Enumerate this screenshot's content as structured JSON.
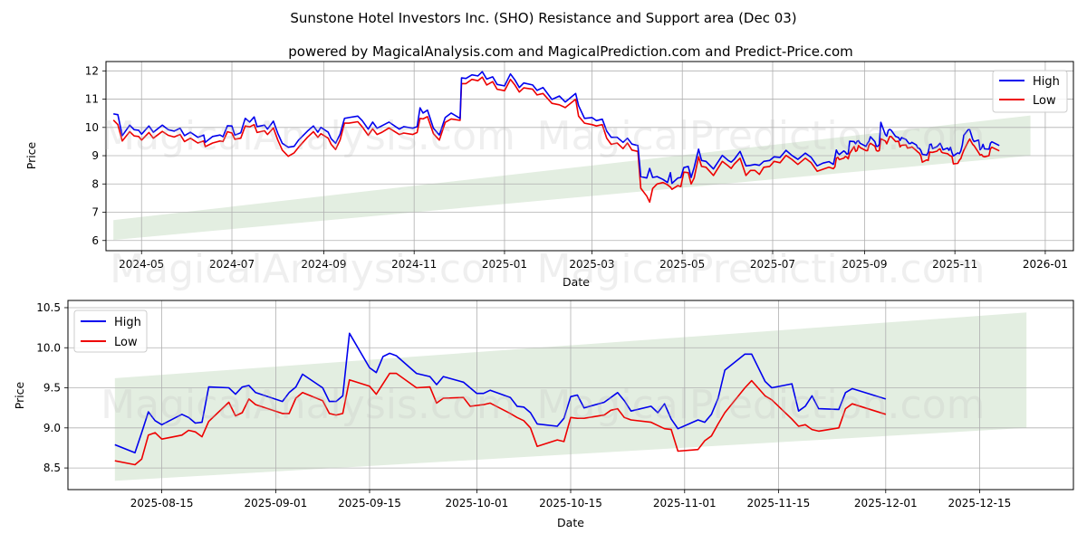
{
  "title": "Sunstone Hotel Investors Inc. (SHO) Resistance and Support area (Dec 03)",
  "subtitle": "powered by MagicalAnalysis.com and MagicalPrediction.com and Predict-Price.com",
  "watermarks": [
    "MagicalAnalysis.com",
    "MagicalPrediction.com"
  ],
  "colors": {
    "high": "#0000ee",
    "low": "#ee0000",
    "band": "#e3eee1",
    "grid": "#b0b0b0"
  },
  "legend": {
    "high": "High",
    "low": "Low"
  },
  "chart_data": [
    {
      "type": "line",
      "title": "",
      "xlabel": "Date",
      "ylabel": "Price",
      "xlim": [
        "2024-04-07",
        "2026-01-20"
      ],
      "ylim": [
        5.64,
        12.33
      ],
      "grid": true,
      "legend_position": "top-right",
      "xticks": [
        [
          "2024-05-01",
          "2024-05"
        ],
        [
          "2024-07-01",
          "2024-07"
        ],
        [
          "2024-09-01",
          "2024-09"
        ],
        [
          "2024-11-01",
          "2024-11"
        ],
        [
          "2025-01-01",
          "2025-01"
        ],
        [
          "2025-03-01",
          "2025-03"
        ],
        [
          "2025-05-01",
          "2025-05"
        ],
        [
          "2025-07-01",
          "2025-07"
        ],
        [
          "2025-09-01",
          "2025-09"
        ],
        [
          "2025-11-01",
          "2025-11"
        ],
        [
          "2026-01-01",
          "2026-01"
        ]
      ],
      "yticks": [
        [
          "6",
          "6"
        ],
        [
          "7",
          "7"
        ],
        [
          "8",
          "8"
        ],
        [
          "9",
          "9"
        ],
        [
          "10",
          "10"
        ],
        [
          "11",
          "11"
        ],
        [
          "12",
          "12"
        ]
      ],
      "band": {
        "start": [
          "2024-04-12",
          6.02,
          6.72
        ],
        "end": [
          "2025-12-22",
          9.0,
          10.42
        ]
      },
      "points_before_window": [
        [
          "2024-04-12",
          10.48,
          10.26
        ],
        [
          "2024-04-15",
          10.45,
          10.1
        ],
        [
          "2024-04-18",
          9.71,
          9.52
        ],
        [
          "2024-04-23",
          10.08,
          9.85
        ],
        [
          "2024-04-26",
          9.92,
          9.7
        ],
        [
          "2024-04-29",
          9.9,
          9.68
        ],
        [
          "2024-05-01",
          9.76,
          9.55
        ],
        [
          "2024-05-06",
          10.05,
          9.82
        ],
        [
          "2024-05-09",
          9.83,
          9.62
        ],
        [
          "2024-05-15",
          10.08,
          9.86
        ],
        [
          "2024-05-19",
          9.92,
          9.72
        ],
        [
          "2024-05-23",
          9.87,
          9.66
        ],
        [
          "2024-05-27",
          9.97,
          9.75
        ],
        [
          "2024-05-30",
          9.71,
          9.5
        ],
        [
          "2024-06-03",
          9.83,
          9.62
        ],
        [
          "2024-06-08",
          9.65,
          9.45
        ],
        [
          "2024-06-12",
          9.73,
          9.52
        ],
        [
          "2024-06-13",
          9.47,
          9.32
        ],
        [
          "2024-06-18",
          9.68,
          9.45
        ],
        [
          "2024-06-23",
          9.73,
          9.52
        ],
        [
          "2024-06-25",
          9.67,
          9.5
        ],
        [
          "2024-06-28",
          10.06,
          9.85
        ],
        [
          "2024-07-01",
          10.05,
          9.8
        ],
        [
          "2024-07-03",
          9.73,
          9.58
        ],
        [
          "2024-07-07",
          9.81,
          9.62
        ],
        [
          "2024-07-10",
          10.32,
          10.05
        ],
        [
          "2024-07-13",
          10.19,
          10.02
        ],
        [
          "2024-07-16",
          10.37,
          10.1
        ],
        [
          "2024-07-18",
          10.03,
          9.82
        ],
        [
          "2024-07-23",
          10.08,
          9.88
        ],
        [
          "2024-07-25",
          9.94,
          9.75
        ],
        [
          "2024-07-29",
          10.22,
          9.98
        ],
        [
          "2024-08-01",
          9.79,
          9.55
        ],
        [
          "2024-08-04",
          9.44,
          9.2
        ],
        [
          "2024-08-08",
          9.3,
          8.98
        ],
        [
          "2024-08-12",
          9.33,
          9.1
        ],
        [
          "2024-08-15",
          9.55,
          9.3
        ],
        [
          "2024-08-21",
          9.87,
          9.65
        ],
        [
          "2024-08-25",
          10.05,
          9.85
        ],
        [
          "2024-08-28",
          9.83,
          9.65
        ],
        [
          "2024-08-30",
          10.0,
          9.78
        ],
        [
          "2024-09-04",
          9.83,
          9.62
        ],
        [
          "2024-09-06",
          9.6,
          9.4
        ],
        [
          "2024-09-09",
          9.44,
          9.22
        ],
        [
          "2024-09-12",
          9.76,
          9.55
        ],
        [
          "2024-09-15",
          10.32,
          10.15
        ],
        [
          "2024-09-18",
          10.35,
          10.15
        ],
        [
          "2024-09-24",
          10.4,
          10.2
        ],
        [
          "2024-09-27",
          10.24,
          10.02
        ],
        [
          "2024-10-01",
          9.94,
          9.72
        ],
        [
          "2024-10-04",
          10.19,
          9.95
        ],
        [
          "2024-10-07",
          9.97,
          9.75
        ],
        [
          "2024-10-10",
          10.05,
          9.82
        ],
        [
          "2024-10-15",
          10.19,
          9.98
        ],
        [
          "2024-10-22",
          9.94,
          9.75
        ],
        [
          "2024-10-25",
          10.03,
          9.8
        ],
        [
          "2024-10-31",
          9.97,
          9.75
        ],
        [
          "2024-11-03",
          10.03,
          9.82
        ],
        [
          "2024-11-05",
          10.69,
          10.32
        ],
        [
          "2024-11-07",
          10.51,
          10.3
        ],
        [
          "2024-11-10",
          10.61,
          10.38
        ],
        [
          "2024-11-14",
          9.97,
          9.78
        ],
        [
          "2024-11-18",
          9.73,
          9.55
        ],
        [
          "2024-11-22",
          10.35,
          10.18
        ],
        [
          "2024-11-26",
          10.51,
          10.3
        ],
        [
          "2024-12-02",
          10.32,
          10.25
        ],
        [
          "2024-12-03",
          11.75,
          11.55
        ],
        [
          "2024-12-06",
          11.73,
          11.55
        ],
        [
          "2024-12-10",
          11.86,
          11.7
        ],
        [
          "2024-12-14",
          11.82,
          11.65
        ],
        [
          "2024-12-17",
          11.97,
          11.78
        ],
        [
          "2024-12-20",
          11.71,
          11.5
        ],
        [
          "2024-12-24",
          11.79,
          11.62
        ],
        [
          "2024-12-27",
          11.52,
          11.35
        ],
        [
          "2025-01-01",
          11.47,
          11.3
        ],
        [
          "2025-01-05",
          11.89,
          11.7
        ],
        [
          "2025-01-08",
          11.68,
          11.5
        ],
        [
          "2025-01-11",
          11.41,
          11.25
        ],
        [
          "2025-01-14",
          11.57,
          11.4
        ],
        [
          "2025-01-20",
          11.5,
          11.35
        ],
        [
          "2025-01-23",
          11.31,
          11.15
        ],
        [
          "2025-01-27",
          11.41,
          11.2
        ],
        [
          "2025-02-02",
          10.99,
          10.85
        ],
        [
          "2025-02-07",
          11.11,
          10.8
        ],
        [
          "2025-02-11",
          10.9,
          10.7
        ],
        [
          "2025-02-18",
          11.2,
          11.0
        ],
        [
          "2025-02-20",
          10.77,
          10.4
        ],
        [
          "2025-02-24",
          10.32,
          10.15
        ],
        [
          "2025-03-01",
          10.35,
          10.1
        ],
        [
          "2025-03-04",
          10.24,
          10.05
        ],
        [
          "2025-03-08",
          10.29,
          10.1
        ],
        [
          "2025-03-11",
          9.87,
          9.62
        ],
        [
          "2025-03-14",
          9.65,
          9.4
        ],
        [
          "2025-03-18",
          9.65,
          9.45
        ],
        [
          "2025-03-22",
          9.47,
          9.25
        ],
        [
          "2025-03-25",
          9.62,
          9.45
        ],
        [
          "2025-03-28",
          9.41,
          9.2
        ],
        [
          "2025-04-01",
          9.36,
          9.15
        ],
        [
          "2025-04-03",
          8.26,
          7.85
        ],
        [
          "2025-04-07",
          8.21,
          7.57
        ],
        [
          "2025-04-09",
          8.55,
          7.36
        ],
        [
          "2025-04-11",
          8.23,
          7.84
        ],
        [
          "2025-04-14",
          8.26,
          8.0
        ],
        [
          "2025-04-18",
          8.16,
          8.05
        ],
        [
          "2025-04-21",
          8.05,
          7.97
        ],
        [
          "2025-04-23",
          8.4,
          7.89
        ],
        [
          "2025-04-24",
          8.02,
          7.81
        ],
        [
          "2025-04-28",
          8.21,
          7.94
        ],
        [
          "2025-04-30",
          8.23,
          7.91
        ],
        [
          "2025-05-02",
          8.58,
          8.42
        ],
        [
          "2025-05-05",
          8.62,
          8.4
        ],
        [
          "2025-05-07",
          8.23,
          8.0
        ],
        [
          "2025-05-09",
          8.58,
          8.21
        ],
        [
          "2025-05-12",
          9.23,
          8.96
        ],
        [
          "2025-05-14",
          8.83,
          8.62
        ],
        [
          "2025-05-17",
          8.8,
          8.59
        ],
        [
          "2025-05-22",
          8.53,
          8.3
        ],
        [
          "2025-05-28",
          9.01,
          8.8
        ],
        [
          "2025-06-01",
          8.83,
          8.64
        ],
        [
          "2025-06-03",
          8.77,
          8.55
        ],
        [
          "2025-06-05",
          8.87,
          8.7
        ],
        [
          "2025-06-09",
          9.15,
          8.91
        ],
        [
          "2025-06-13",
          8.64,
          8.3
        ],
        [
          "2025-06-16",
          8.66,
          8.48
        ],
        [
          "2025-06-19",
          8.69,
          8.48
        ],
        [
          "2025-06-22",
          8.66,
          8.34
        ],
        [
          "2025-06-25",
          8.8,
          8.59
        ],
        [
          "2025-06-29",
          8.83,
          8.62
        ],
        [
          "2025-07-02",
          8.96,
          8.8
        ],
        [
          "2025-07-06",
          8.94,
          8.75
        ],
        [
          "2025-07-10",
          9.19,
          9.01
        ],
        [
          "2025-07-14",
          9.01,
          8.87
        ],
        [
          "2025-07-18",
          8.87,
          8.69
        ],
        [
          "2025-07-23",
          9.09,
          8.91
        ],
        [
          "2025-07-27",
          8.94,
          8.75
        ],
        [
          "2025-07-31",
          8.64,
          8.45
        ],
        [
          "2025-08-04",
          8.74,
          8.52
        ]
      ]
    },
    {
      "type": "line",
      "title": "",
      "xlabel": "Date",
      "ylabel": "Price",
      "xlim": [
        "2025-08-01",
        "2025-12-29"
      ],
      "ylim": [
        8.23,
        10.59
      ],
      "grid": true,
      "legend_position": "top-left",
      "xticks": [
        [
          "2025-08-15",
          "2025-08-15"
        ],
        [
          "2025-09-01",
          "2025-09-01"
        ],
        [
          "2025-09-15",
          "2025-09-15"
        ],
        [
          "2025-10-01",
          "2025-10-01"
        ],
        [
          "2025-10-15",
          "2025-10-15"
        ],
        [
          "2025-11-01",
          "2025-11-01"
        ],
        [
          "2025-11-15",
          "2025-11-15"
        ],
        [
          "2025-12-01",
          "2025-12-01"
        ],
        [
          "2025-12-15",
          "2025-12-15"
        ]
      ],
      "yticks": [
        [
          "8.5",
          "8.5"
        ],
        [
          "9.0",
          "9.0"
        ],
        [
          "9.5",
          "9.5"
        ],
        [
          "10.0",
          "10.0"
        ],
        [
          "10.5",
          "10.5"
        ]
      ],
      "band": {
        "start": [
          "2025-08-08",
          8.34,
          9.62
        ],
        "end": [
          "2025-12-22",
          9.0,
          10.44
        ]
      },
      "points": [
        [
          "2025-08-08",
          8.79,
          8.59
        ],
        [
          "2025-08-11",
          8.69,
          8.54
        ],
        [
          "2025-08-12",
          8.94,
          8.61
        ],
        [
          "2025-08-13",
          9.2,
          8.91
        ],
        [
          "2025-08-14",
          9.09,
          8.94
        ],
        [
          "2025-08-15",
          9.04,
          8.86
        ],
        [
          "2025-08-18",
          9.17,
          8.91
        ],
        [
          "2025-08-19",
          9.13,
          8.97
        ],
        [
          "2025-08-20",
          9.06,
          8.95
        ],
        [
          "2025-08-21",
          9.07,
          8.89
        ],
        [
          "2025-08-22",
          9.51,
          9.08
        ],
        [
          "2025-08-25",
          9.5,
          9.32
        ],
        [
          "2025-08-26",
          9.42,
          9.15
        ],
        [
          "2025-08-27",
          9.51,
          9.19
        ],
        [
          "2025-08-28",
          9.53,
          9.36
        ],
        [
          "2025-08-29",
          9.44,
          9.29
        ],
        [
          "2025-09-02",
          9.33,
          9.18
        ],
        [
          "2025-09-03",
          9.44,
          9.18
        ],
        [
          "2025-09-04",
          9.51,
          9.37
        ],
        [
          "2025-09-05",
          9.67,
          9.44
        ],
        [
          "2025-09-08",
          9.5,
          9.34
        ],
        [
          "2025-09-09",
          9.33,
          9.18
        ],
        [
          "2025-09-10",
          9.33,
          9.16
        ],
        [
          "2025-09-11",
          9.4,
          9.18
        ],
        [
          "2025-09-12",
          10.18,
          9.6
        ],
        [
          "2025-09-15",
          9.75,
          9.52
        ],
        [
          "2025-09-16",
          9.69,
          9.42
        ],
        [
          "2025-09-17",
          9.89,
          9.55
        ],
        [
          "2025-09-18",
          9.93,
          9.68
        ],
        [
          "2025-09-19",
          9.9,
          9.68
        ],
        [
          "2025-09-22",
          9.68,
          9.5
        ],
        [
          "2025-09-24",
          9.64,
          9.51
        ],
        [
          "2025-09-25",
          9.54,
          9.31
        ],
        [
          "2025-09-26",
          9.64,
          9.37
        ],
        [
          "2025-09-29",
          9.57,
          9.38
        ],
        [
          "2025-09-30",
          9.5,
          9.27
        ],
        [
          "2025-10-01",
          9.43,
          9.28
        ],
        [
          "2025-10-02",
          9.43,
          9.29
        ],
        [
          "2025-10-03",
          9.47,
          9.31
        ],
        [
          "2025-10-06",
          9.38,
          9.18
        ],
        [
          "2025-10-07",
          9.27,
          9.13
        ],
        [
          "2025-10-08",
          9.26,
          9.09
        ],
        [
          "2025-10-09",
          9.19,
          9.0
        ],
        [
          "2025-10-10",
          9.05,
          8.77
        ],
        [
          "2025-10-13",
          9.02,
          8.85
        ],
        [
          "2025-10-14",
          9.12,
          8.83
        ],
        [
          "2025-10-15",
          9.39,
          9.13
        ],
        [
          "2025-10-16",
          9.41,
          9.12
        ],
        [
          "2025-10-17",
          9.25,
          9.12
        ],
        [
          "2025-10-20",
          9.32,
          9.16
        ],
        [
          "2025-10-21",
          9.38,
          9.22
        ],
        [
          "2025-10-22",
          9.44,
          9.24
        ],
        [
          "2025-10-23",
          9.34,
          9.13
        ],
        [
          "2025-10-24",
          9.21,
          9.1
        ],
        [
          "2025-10-27",
          9.27,
          9.07
        ],
        [
          "2025-10-28",
          9.19,
          9.03
        ],
        [
          "2025-10-29",
          9.3,
          8.99
        ],
        [
          "2025-10-30",
          9.11,
          8.98
        ],
        [
          "2025-10-31",
          8.99,
          8.71
        ],
        [
          "2025-11-03",
          9.1,
          8.73
        ],
        [
          "2025-11-04",
          9.07,
          8.84
        ],
        [
          "2025-11-05",
          9.17,
          8.9
        ],
        [
          "2025-11-06",
          9.37,
          9.05
        ],
        [
          "2025-11-07",
          9.72,
          9.19
        ],
        [
          "2025-11-10",
          9.92,
          9.5
        ],
        [
          "2025-11-11",
          9.92,
          9.59
        ],
        [
          "2025-11-13",
          9.58,
          9.4
        ],
        [
          "2025-11-14",
          9.5,
          9.35
        ],
        [
          "2025-11-17",
          9.55,
          9.11
        ],
        [
          "2025-11-18",
          9.21,
          9.02
        ],
        [
          "2025-11-19",
          9.27,
          9.04
        ],
        [
          "2025-11-20",
          9.4,
          8.98
        ],
        [
          "2025-11-21",
          9.24,
          8.96
        ],
        [
          "2025-11-24",
          9.23,
          9.0
        ],
        [
          "2025-11-25",
          9.44,
          9.24
        ],
        [
          "2025-11-26",
          9.49,
          9.3
        ],
        [
          "2025-12-01",
          9.36,
          9.17
        ]
      ]
    }
  ]
}
